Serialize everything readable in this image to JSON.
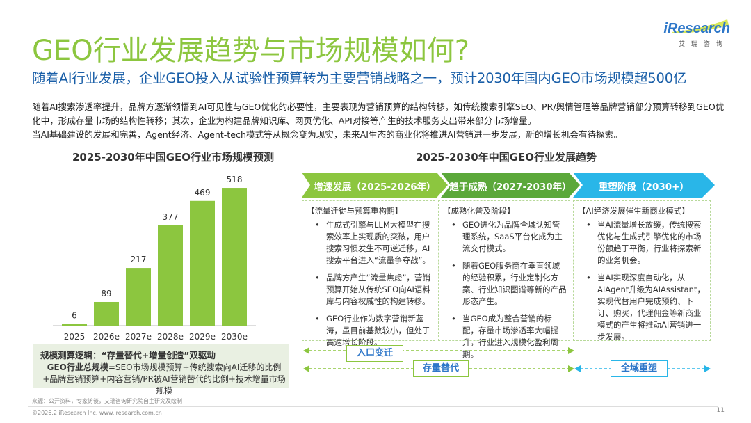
{
  "header": {
    "title": "GEO行业发展趋势与市场规模如何?",
    "subtitle": "随着AI行业发展，企业GEO投入从试验性预算转为主要营销战略之一，预计2030年国内GEO市场规模超500亿",
    "logo_text": "iResearch",
    "logo_sub": "艾瑞咨询"
  },
  "intro": {
    "line1": "随着AI搜索渗透率提升，品牌方逐渐领悟到AI可见性与GEO优化的必要性，主要表现为营销预算的结构转移，如传统搜索引擎SEO、PR/舆情管理等品牌营销部分预算转移到GEO优化中，形成存量市场的结构性转移；其次，企业为构建品牌知识库、网页优化、API对接等产生的技术服务支出带来部分市场增量。",
    "line2": "当AI基础建设的发展和完善，Agent经济、Agent-tech模式等从概念变为现实，未来AI生态的商业化将推进AI营销进一步发展，新的增长机会有待探索。"
  },
  "chart": {
    "section_title": "2025-2030年中国GEO行业市场规模预测"
  },
  "chart_data": {
    "type": "bar",
    "title": "2025-2030年中国GEO行业市场规模预测",
    "categories": [
      "2025",
      "2026e",
      "2027e",
      "2028e",
      "2029e",
      "2030e"
    ],
    "values": [
      6,
      89,
      217,
      377,
      469,
      518
    ],
    "ylim": [
      0,
      560
    ],
    "xlabel": "",
    "ylabel": "",
    "grid": false,
    "bar_color": "#8cc63f"
  },
  "logic": {
    "heading": "规模测算逻辑：“存量替代+增量创造”双驱动",
    "formula_bold": "GEO行业总规模",
    "formula_rest": "=SEO市场规模预算+传统搜索向AI迁移的比例+品牌营销预算+内容营销/PR被AI营销替代的比例+技术增量市场规模"
  },
  "trend": {
    "section_title": "2025-2030年中国GEO行业发展趋势",
    "phases": [
      {
        "label": "增速发展（2025-2026年）",
        "color": "#8cc63f",
        "subtitle": "【流量迁徙与预算重构期】",
        "points": [
          "生成式引擎与LLM大模型在搜索效率上实现质的突破，用户搜索习惯发生不可逆迁移，AI搜索平台进入“流量争夺战”。",
          "品牌方产生“流量焦虑”，营销预算开始从传统SEO向AI语料库与内容权威性的构建转移。",
          "GEO行业作为数字营销新蓝海，虽目前基数较小，但处于高速增长阶段。"
        ]
      },
      {
        "label": "趋于成熟（2027-2030年）",
        "color": "#5ba83a",
        "subtitle": "【成熟化普及阶段】",
        "points": [
          "GEO进化为品牌全域认知管理系统，SaaS平台化成为主流交付模式。",
          "随着GEO服务商在垂直领域的经验积累，行业定制化方案、行业知识图谱等新的产品形态产生。",
          "当GEO成为整合营销的标配，存量市场渗透率大幅提升，行业进入规模化盈利周期。"
        ]
      },
      {
        "label": "重塑阶段（2030+）",
        "color": "#29b6e8",
        "subtitle": "【AI经济发展催生新商业模式】",
        "points": [
          "当AI流量增长放缓，传统搜索优化与生成式引擎优化的市场份额趋于平衡，行业将探索新的业务机会。",
          "当AI实现深度自动化，从AIAgent升级为AIAssistant，实现代替用户完成预约、下订、购买，代理佣金等新商业模式的产生将推动AI营销进一步发展。"
        ]
      }
    ],
    "tags": {
      "entry": "入口变迁",
      "stock": "存量替代",
      "global": "全域重塑"
    }
  },
  "footer": {
    "source": "来源：公开资料，专家访谈，艾瑞咨询研究院自主研究及绘制",
    "copyright": "©2026.2 iResearch Inc.                     www.iresearch.com.cn",
    "page": "11"
  }
}
